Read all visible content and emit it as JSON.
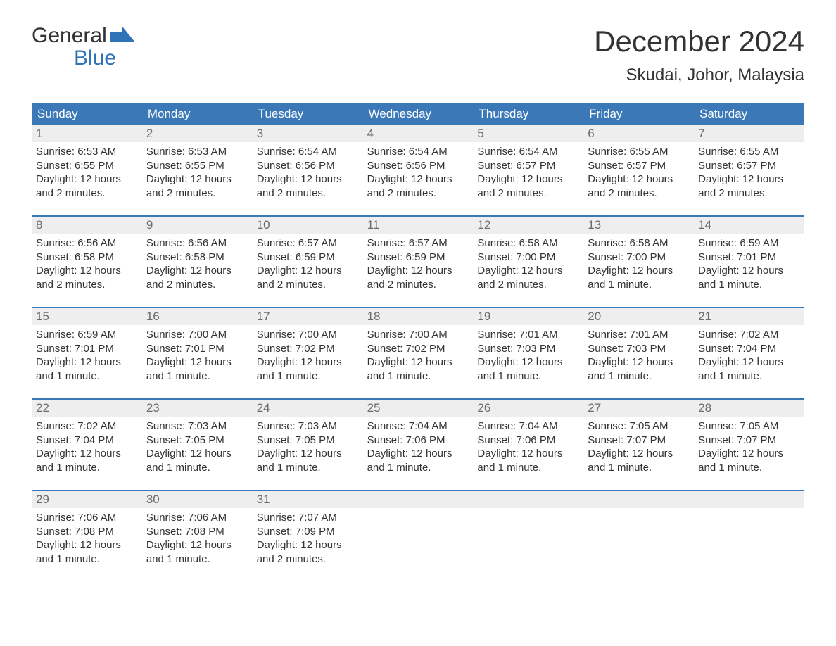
{
  "logo": {
    "text_top": "General",
    "text_bottom": "Blue"
  },
  "title": "December 2024",
  "location": "Skudai, Johor, Malaysia",
  "colors": {
    "header_bg": "#3a78b8",
    "header_text": "#ffffff",
    "daynum_bg": "#eeeeee",
    "daynum_text": "#6b6b6b",
    "body_text": "#333333",
    "logo_blue": "#2f72b6",
    "background": "#ffffff"
  },
  "day_names": [
    "Sunday",
    "Monday",
    "Tuesday",
    "Wednesday",
    "Thursday",
    "Friday",
    "Saturday"
  ],
  "weeks": [
    [
      {
        "day": "1",
        "sunrise": "Sunrise: 6:53 AM",
        "sunset": "Sunset: 6:55 PM",
        "daylight1": "Daylight: 12 hours",
        "daylight2": "and 2 minutes."
      },
      {
        "day": "2",
        "sunrise": "Sunrise: 6:53 AM",
        "sunset": "Sunset: 6:55 PM",
        "daylight1": "Daylight: 12 hours",
        "daylight2": "and 2 minutes."
      },
      {
        "day": "3",
        "sunrise": "Sunrise: 6:54 AM",
        "sunset": "Sunset: 6:56 PM",
        "daylight1": "Daylight: 12 hours",
        "daylight2": "and 2 minutes."
      },
      {
        "day": "4",
        "sunrise": "Sunrise: 6:54 AM",
        "sunset": "Sunset: 6:56 PM",
        "daylight1": "Daylight: 12 hours",
        "daylight2": "and 2 minutes."
      },
      {
        "day": "5",
        "sunrise": "Sunrise: 6:54 AM",
        "sunset": "Sunset: 6:57 PM",
        "daylight1": "Daylight: 12 hours",
        "daylight2": "and 2 minutes."
      },
      {
        "day": "6",
        "sunrise": "Sunrise: 6:55 AM",
        "sunset": "Sunset: 6:57 PM",
        "daylight1": "Daylight: 12 hours",
        "daylight2": "and 2 minutes."
      },
      {
        "day": "7",
        "sunrise": "Sunrise: 6:55 AM",
        "sunset": "Sunset: 6:57 PM",
        "daylight1": "Daylight: 12 hours",
        "daylight2": "and 2 minutes."
      }
    ],
    [
      {
        "day": "8",
        "sunrise": "Sunrise: 6:56 AM",
        "sunset": "Sunset: 6:58 PM",
        "daylight1": "Daylight: 12 hours",
        "daylight2": "and 2 minutes."
      },
      {
        "day": "9",
        "sunrise": "Sunrise: 6:56 AM",
        "sunset": "Sunset: 6:58 PM",
        "daylight1": "Daylight: 12 hours",
        "daylight2": "and 2 minutes."
      },
      {
        "day": "10",
        "sunrise": "Sunrise: 6:57 AM",
        "sunset": "Sunset: 6:59 PM",
        "daylight1": "Daylight: 12 hours",
        "daylight2": "and 2 minutes."
      },
      {
        "day": "11",
        "sunrise": "Sunrise: 6:57 AM",
        "sunset": "Sunset: 6:59 PM",
        "daylight1": "Daylight: 12 hours",
        "daylight2": "and 2 minutes."
      },
      {
        "day": "12",
        "sunrise": "Sunrise: 6:58 AM",
        "sunset": "Sunset: 7:00 PM",
        "daylight1": "Daylight: 12 hours",
        "daylight2": "and 2 minutes."
      },
      {
        "day": "13",
        "sunrise": "Sunrise: 6:58 AM",
        "sunset": "Sunset: 7:00 PM",
        "daylight1": "Daylight: 12 hours",
        "daylight2": "and 1 minute."
      },
      {
        "day": "14",
        "sunrise": "Sunrise: 6:59 AM",
        "sunset": "Sunset: 7:01 PM",
        "daylight1": "Daylight: 12 hours",
        "daylight2": "and 1 minute."
      }
    ],
    [
      {
        "day": "15",
        "sunrise": "Sunrise: 6:59 AM",
        "sunset": "Sunset: 7:01 PM",
        "daylight1": "Daylight: 12 hours",
        "daylight2": "and 1 minute."
      },
      {
        "day": "16",
        "sunrise": "Sunrise: 7:00 AM",
        "sunset": "Sunset: 7:01 PM",
        "daylight1": "Daylight: 12 hours",
        "daylight2": "and 1 minute."
      },
      {
        "day": "17",
        "sunrise": "Sunrise: 7:00 AM",
        "sunset": "Sunset: 7:02 PM",
        "daylight1": "Daylight: 12 hours",
        "daylight2": "and 1 minute."
      },
      {
        "day": "18",
        "sunrise": "Sunrise: 7:00 AM",
        "sunset": "Sunset: 7:02 PM",
        "daylight1": "Daylight: 12 hours",
        "daylight2": "and 1 minute."
      },
      {
        "day": "19",
        "sunrise": "Sunrise: 7:01 AM",
        "sunset": "Sunset: 7:03 PM",
        "daylight1": "Daylight: 12 hours",
        "daylight2": "and 1 minute."
      },
      {
        "day": "20",
        "sunrise": "Sunrise: 7:01 AM",
        "sunset": "Sunset: 7:03 PM",
        "daylight1": "Daylight: 12 hours",
        "daylight2": "and 1 minute."
      },
      {
        "day": "21",
        "sunrise": "Sunrise: 7:02 AM",
        "sunset": "Sunset: 7:04 PM",
        "daylight1": "Daylight: 12 hours",
        "daylight2": "and 1 minute."
      }
    ],
    [
      {
        "day": "22",
        "sunrise": "Sunrise: 7:02 AM",
        "sunset": "Sunset: 7:04 PM",
        "daylight1": "Daylight: 12 hours",
        "daylight2": "and 1 minute."
      },
      {
        "day": "23",
        "sunrise": "Sunrise: 7:03 AM",
        "sunset": "Sunset: 7:05 PM",
        "daylight1": "Daylight: 12 hours",
        "daylight2": "and 1 minute."
      },
      {
        "day": "24",
        "sunrise": "Sunrise: 7:03 AM",
        "sunset": "Sunset: 7:05 PM",
        "daylight1": "Daylight: 12 hours",
        "daylight2": "and 1 minute."
      },
      {
        "day": "25",
        "sunrise": "Sunrise: 7:04 AM",
        "sunset": "Sunset: 7:06 PM",
        "daylight1": "Daylight: 12 hours",
        "daylight2": "and 1 minute."
      },
      {
        "day": "26",
        "sunrise": "Sunrise: 7:04 AM",
        "sunset": "Sunset: 7:06 PM",
        "daylight1": "Daylight: 12 hours",
        "daylight2": "and 1 minute."
      },
      {
        "day": "27",
        "sunrise": "Sunrise: 7:05 AM",
        "sunset": "Sunset: 7:07 PM",
        "daylight1": "Daylight: 12 hours",
        "daylight2": "and 1 minute."
      },
      {
        "day": "28",
        "sunrise": "Sunrise: 7:05 AM",
        "sunset": "Sunset: 7:07 PM",
        "daylight1": "Daylight: 12 hours",
        "daylight2": "and 1 minute."
      }
    ],
    [
      {
        "day": "29",
        "sunrise": "Sunrise: 7:06 AM",
        "sunset": "Sunset: 7:08 PM",
        "daylight1": "Daylight: 12 hours",
        "daylight2": "and 1 minute."
      },
      {
        "day": "30",
        "sunrise": "Sunrise: 7:06 AM",
        "sunset": "Sunset: 7:08 PM",
        "daylight1": "Daylight: 12 hours",
        "daylight2": "and 1 minute."
      },
      {
        "day": "31",
        "sunrise": "Sunrise: 7:07 AM",
        "sunset": "Sunset: 7:09 PM",
        "daylight1": "Daylight: 12 hours",
        "daylight2": "and 2 minutes."
      },
      null,
      null,
      null,
      null
    ]
  ]
}
